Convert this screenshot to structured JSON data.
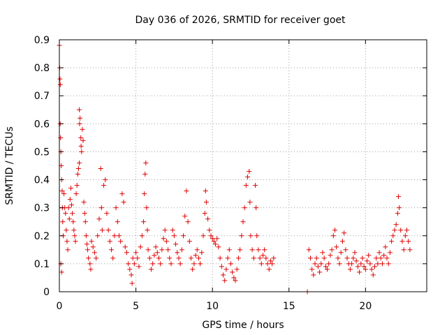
{
  "chart_data": {
    "type": "scatter",
    "title": "Day 036 of 2026, SRMTID for receiver goet",
    "xlabel": "GPS time / hours",
    "ylabel": "SRMTID / TECUs",
    "xlim": [
      0,
      24
    ],
    "ylim": [
      0,
      0.9
    ],
    "xticks": [
      0,
      5,
      10,
      15,
      20
    ],
    "yticks": [
      0,
      0.1,
      0.2,
      0.3,
      0.4,
      0.5,
      0.6,
      0.7,
      0.8,
      0.9
    ],
    "xtick_labels": [
      "0",
      "5",
      "10",
      "15",
      "20"
    ],
    "ytick_labels": [
      "0",
      "0.1",
      "0.2",
      "0.3",
      "0.4",
      "0.5",
      "0.6",
      "0.7",
      "0.8",
      "0.9"
    ],
    "grid": true,
    "marker": "+",
    "marker_color": "#e00000",
    "series": [
      {
        "name": "SRMTID",
        "points": [
          [
            0.0,
            0.88
          ],
          [
            0.02,
            0.8
          ],
          [
            0.04,
            0.76
          ],
          [
            0.06,
            0.74
          ],
          [
            0.05,
            0.6
          ],
          [
            0.08,
            0.55
          ],
          [
            0.1,
            0.5
          ],
          [
            0.12,
            0.45
          ],
          [
            0.15,
            0.4
          ],
          [
            0.18,
            0.36
          ],
          [
            0.2,
            0.3
          ],
          [
            0.22,
            0.25
          ],
          [
            0.25,
            0.2
          ],
          [
            0.1,
            0.1
          ],
          [
            0.15,
            0.07
          ],
          [
            0.3,
            0.35
          ],
          [
            0.35,
            0.3
          ],
          [
            0.4,
            0.28
          ],
          [
            0.45,
            0.22
          ],
          [
            0.5,
            0.18
          ],
          [
            0.55,
            0.15
          ],
          [
            0.6,
            0.3
          ],
          [
            0.65,
            0.26
          ],
          [
            0.7,
            0.33
          ],
          [
            0.75,
            0.37
          ],
          [
            0.8,
            0.31
          ],
          [
            0.85,
            0.28
          ],
          [
            0.9,
            0.25
          ],
          [
            0.95,
            0.22
          ],
          [
            1.0,
            0.2
          ],
          [
            1.05,
            0.18
          ],
          [
            1.1,
            0.35
          ],
          [
            1.15,
            0.38
          ],
          [
            1.2,
            0.42
          ],
          [
            1.25,
            0.44
          ],
          [
            1.3,
            0.46
          ],
          [
            1.3,
            0.65
          ],
          [
            1.32,
            0.6
          ],
          [
            1.35,
            0.62
          ],
          [
            1.4,
            0.55
          ],
          [
            1.42,
            0.52
          ],
          [
            1.45,
            0.5
          ],
          [
            1.5,
            0.58
          ],
          [
            1.55,
            0.54
          ],
          [
            1.6,
            0.32
          ],
          [
            1.65,
            0.28
          ],
          [
            1.7,
            0.25
          ],
          [
            1.75,
            0.2
          ],
          [
            1.8,
            0.17
          ],
          [
            1.85,
            0.15
          ],
          [
            1.9,
            0.12
          ],
          [
            2.0,
            0.1
          ],
          [
            2.05,
            0.08
          ],
          [
            2.1,
            0.18
          ],
          [
            2.2,
            0.16
          ],
          [
            2.3,
            0.14
          ],
          [
            2.4,
            0.12
          ],
          [
            2.5,
            0.2
          ],
          [
            2.6,
            0.26
          ],
          [
            2.7,
            0.44
          ],
          [
            2.75,
            0.3
          ],
          [
            2.8,
            0.22
          ],
          [
            2.9,
            0.38
          ],
          [
            3.0,
            0.4
          ],
          [
            3.1,
            0.28
          ],
          [
            3.2,
            0.22
          ],
          [
            3.3,
            0.18
          ],
          [
            3.4,
            0.15
          ],
          [
            3.5,
            0.12
          ],
          [
            3.6,
            0.2
          ],
          [
            3.7,
            0.3
          ],
          [
            3.8,
            0.25
          ],
          [
            3.9,
            0.2
          ],
          [
            4.0,
            0.18
          ],
          [
            4.1,
            0.35
          ],
          [
            4.2,
            0.32
          ],
          [
            4.3,
            0.16
          ],
          [
            4.4,
            0.14
          ],
          [
            4.5,
            0.1
          ],
          [
            4.6,
            0.08
          ],
          [
            4.7,
            0.06
          ],
          [
            4.75,
            0.03
          ],
          [
            4.8,
            0.12
          ],
          [
            4.9,
            0.1
          ],
          [
            5.0,
            0.14
          ],
          [
            5.1,
            0.12
          ],
          [
            5.2,
            0.09
          ],
          [
            5.3,
            0.16
          ],
          [
            5.4,
            0.2
          ],
          [
            5.5,
            0.25
          ],
          [
            5.55,
            0.35
          ],
          [
            5.6,
            0.42
          ],
          [
            5.65,
            0.46
          ],
          [
            5.7,
            0.3
          ],
          [
            5.75,
            0.22
          ],
          [
            5.8,
            0.15
          ],
          [
            5.9,
            0.12
          ],
          [
            6.0,
            0.08
          ],
          [
            6.1,
            0.1
          ],
          [
            6.2,
            0.13
          ],
          [
            6.3,
            0.16
          ],
          [
            6.4,
            0.14
          ],
          [
            6.5,
            0.12
          ],
          [
            6.6,
            0.1
          ],
          [
            6.7,
            0.15
          ],
          [
            6.8,
            0.19
          ],
          [
            6.9,
            0.22
          ],
          [
            7.0,
            0.18
          ],
          [
            7.1,
            0.15
          ],
          [
            7.2,
            0.12
          ],
          [
            7.3,
            0.1
          ],
          [
            7.4,
            0.22
          ],
          [
            7.5,
            0.2
          ],
          [
            7.6,
            0.17
          ],
          [
            7.7,
            0.14
          ],
          [
            7.8,
            0.12
          ],
          [
            7.9,
            0.1
          ],
          [
            8.0,
            0.15
          ],
          [
            8.1,
            0.2
          ],
          [
            8.2,
            0.27
          ],
          [
            8.3,
            0.36
          ],
          [
            8.4,
            0.25
          ],
          [
            8.5,
            0.18
          ],
          [
            8.6,
            0.12
          ],
          [
            8.7,
            0.08
          ],
          [
            8.8,
            0.1
          ],
          [
            8.9,
            0.13
          ],
          [
            9.0,
            0.15
          ],
          [
            9.1,
            0.12
          ],
          [
            9.2,
            0.1
          ],
          [
            9.3,
            0.14
          ],
          [
            9.4,
            0.2
          ],
          [
            9.5,
            0.28
          ],
          [
            9.55,
            0.36
          ],
          [
            9.6,
            0.32
          ],
          [
            9.7,
            0.26
          ],
          [
            9.8,
            0.22
          ],
          [
            9.9,
            0.2
          ],
          [
            10.0,
            0.19
          ],
          [
            10.1,
            0.18
          ],
          [
            10.2,
            0.17
          ],
          [
            10.3,
            0.19
          ],
          [
            10.4,
            0.16
          ],
          [
            10.5,
            0.12
          ],
          [
            10.6,
            0.09
          ],
          [
            10.7,
            0.06
          ],
          [
            10.8,
            0.04
          ],
          [
            10.9,
            0.08
          ],
          [
            11.0,
            0.12
          ],
          [
            11.1,
            0.15
          ],
          [
            11.2,
            0.1
          ],
          [
            11.3,
            0.07
          ],
          [
            11.4,
            0.05
          ],
          [
            11.5,
            0.04
          ],
          [
            11.6,
            0.08
          ],
          [
            11.7,
            0.12
          ],
          [
            11.8,
            0.15
          ],
          [
            11.9,
            0.2
          ],
          [
            12.0,
            0.25
          ],
          [
            12.1,
            0.3
          ],
          [
            12.2,
            0.38
          ],
          [
            12.3,
            0.41
          ],
          [
            12.4,
            0.43
          ],
          [
            12.45,
            0.32
          ],
          [
            12.5,
            0.2
          ],
          [
            12.6,
            0.15
          ],
          [
            12.7,
            0.12
          ],
          [
            12.8,
            0.38
          ],
          [
            12.85,
            0.3
          ],
          [
            12.9,
            0.2
          ],
          [
            13.0,
            0.15
          ],
          [
            13.1,
            0.12
          ],
          [
            13.2,
            0.1
          ],
          [
            13.3,
            0.13
          ],
          [
            13.4,
            0.15
          ],
          [
            13.5,
            0.12
          ],
          [
            13.6,
            0.1
          ],
          [
            13.7,
            0.08
          ],
          [
            13.8,
            0.11
          ],
          [
            13.9,
            0.1
          ],
          [
            14.0,
            0.12
          ],
          [
            16.2,
            0.0
          ],
          [
            16.3,
            0.15
          ],
          [
            16.4,
            0.12
          ],
          [
            16.5,
            0.08
          ],
          [
            16.6,
            0.06
          ],
          [
            16.7,
            0.1
          ],
          [
            16.8,
            0.12
          ],
          [
            16.9,
            0.09
          ],
          [
            17.0,
            0.07
          ],
          [
            17.1,
            0.1
          ],
          [
            17.2,
            0.14
          ],
          [
            17.3,
            0.12
          ],
          [
            17.4,
            0.09
          ],
          [
            17.5,
            0.08
          ],
          [
            17.6,
            0.1
          ],
          [
            17.7,
            0.13
          ],
          [
            17.8,
            0.15
          ],
          [
            17.9,
            0.2
          ],
          [
            18.0,
            0.22
          ],
          [
            18.1,
            0.16
          ],
          [
            18.2,
            0.12
          ],
          [
            18.3,
            0.1
          ],
          [
            18.4,
            0.14
          ],
          [
            18.5,
            0.18
          ],
          [
            18.6,
            0.21
          ],
          [
            18.7,
            0.15
          ],
          [
            18.8,
            0.12
          ],
          [
            18.9,
            0.1
          ],
          [
            19.0,
            0.08
          ],
          [
            19.1,
            0.1
          ],
          [
            19.2,
            0.12
          ],
          [
            19.3,
            0.14
          ],
          [
            19.4,
            0.11
          ],
          [
            19.5,
            0.09
          ],
          [
            19.6,
            0.07
          ],
          [
            19.7,
            0.1
          ],
          [
            19.8,
            0.12
          ],
          [
            19.9,
            0.09
          ],
          [
            20.0,
            0.08
          ],
          [
            20.1,
            0.11
          ],
          [
            20.2,
            0.13
          ],
          [
            20.3,
            0.1
          ],
          [
            20.4,
            0.08
          ],
          [
            20.5,
            0.06
          ],
          [
            20.6,
            0.09
          ],
          [
            20.7,
            0.12
          ],
          [
            20.8,
            0.1
          ],
          [
            20.9,
            0.14
          ],
          [
            21.0,
            0.12
          ],
          [
            21.1,
            0.1
          ],
          [
            21.2,
            0.13
          ],
          [
            21.3,
            0.16
          ],
          [
            21.4,
            0.12
          ],
          [
            21.5,
            0.1
          ],
          [
            21.6,
            0.14
          ],
          [
            21.7,
            0.18
          ],
          [
            21.8,
            0.2
          ],
          [
            21.9,
            0.22
          ],
          [
            22.0,
            0.24
          ],
          [
            22.1,
            0.28
          ],
          [
            22.15,
            0.34
          ],
          [
            22.2,
            0.3
          ],
          [
            22.3,
            0.22
          ],
          [
            22.4,
            0.18
          ],
          [
            22.5,
            0.15
          ],
          [
            22.6,
            0.2
          ],
          [
            22.7,
            0.22
          ],
          [
            22.8,
            0.18
          ],
          [
            22.9,
            0.15
          ]
        ]
      }
    ]
  }
}
